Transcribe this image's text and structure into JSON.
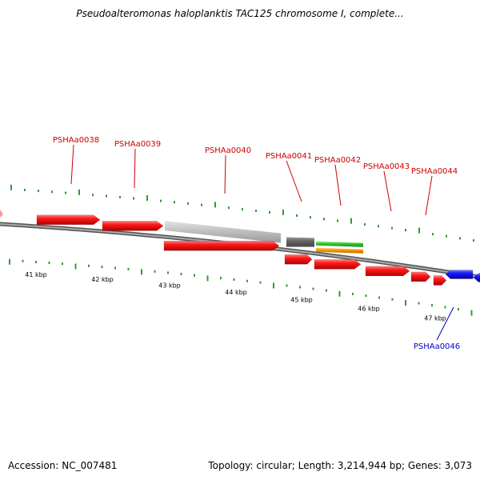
{
  "title": "Pseudoalteromonas haloplanktis TAC125 chromosome I, complete...",
  "footer": {
    "accession": "Accession: NC_007481",
    "summary": "Topology: circular; Length: 3,214,944 bp; Genes: 3,073"
  },
  "colors": {
    "forward_gene": "#ff1a1a",
    "reverse_gene": "#1a1aff",
    "forward_label": "#cc0000",
    "reverse_label": "#0000cc",
    "backbone": "#888888",
    "ticks": "#339933",
    "grey_feature": "#c0c0c0",
    "dark_feature": "#666666",
    "green_feature": "#33cc33",
    "orange_feature": "#ff9900"
  },
  "kbp_labels": [
    "41 kbp",
    "42 kbp",
    "43 kbp",
    "44 kbp",
    "45 kbp",
    "46 kbp",
    "47 kbp"
  ],
  "gene_labels": [
    {
      "text": "PSHAa0038",
      "strand": "forward"
    },
    {
      "text": "PSHAa0039",
      "strand": "forward"
    },
    {
      "text": "PSHAa0040",
      "strand": "forward"
    },
    {
      "text": "PSHAa0041",
      "strand": "forward"
    },
    {
      "text": "PSHAa0042",
      "strand": "forward"
    },
    {
      "text": "PSHAa0043",
      "strand": "forward"
    },
    {
      "text": "PSHAa0044",
      "strand": "forward"
    },
    {
      "text": "PSHAa0046",
      "strand": "reverse"
    }
  ]
}
